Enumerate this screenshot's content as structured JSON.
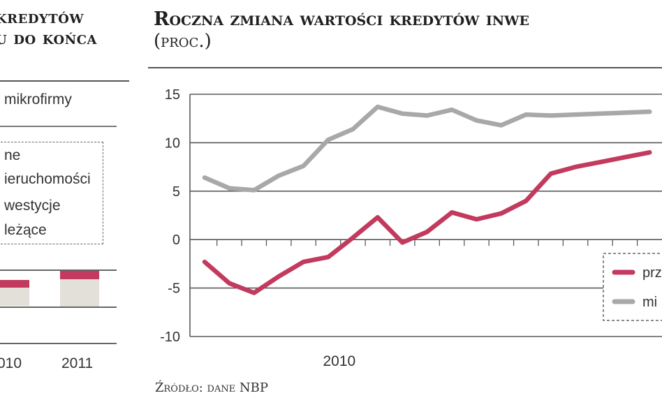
{
  "left_panel": {
    "title_lines": [
      "kredytów",
      "u do końca"
    ],
    "segment_label": "mikrofirmy",
    "legend_items": [
      "ne",
      "ieruchomości",
      "westycje",
      "leżące"
    ],
    "x_labels": [
      "010",
      "2011"
    ],
    "colors": {
      "accent": "#c23a5e",
      "fill": "#e3dfd9",
      "line": "#555555"
    }
  },
  "right_panel": {
    "title": "Roczna zmiana wartości kredytów inwe",
    "subtitle": "(proc.)",
    "source": "Źródło: dane NBP",
    "legend": [
      "prz",
      "mi"
    ]
  },
  "chart_data": {
    "type": "line",
    "y_ticks": [
      "15",
      "10",
      "5",
      "0",
      "-5",
      "-10"
    ],
    "ylim": [
      -10,
      15
    ],
    "x_label": "2010",
    "x_index_range": [
      0,
      18.5
    ],
    "x_label_index": 7,
    "grid": true,
    "legend_position": "bottom-right",
    "series": [
      {
        "name": "prz",
        "color": "#c23a5e",
        "x": [
          0,
          1,
          2,
          3,
          4,
          5,
          6,
          7,
          8,
          9,
          10,
          11,
          12,
          13,
          14,
          15,
          16,
          17,
          18
        ],
        "values": [
          -2.3,
          -4.5,
          -5.5,
          -3.8,
          -2.3,
          -1.8,
          0.2,
          2.3,
          -0.3,
          0.8,
          2.8,
          2.1,
          2.7,
          4,
          6.8,
          7.5,
          8,
          8.5,
          9
        ]
      },
      {
        "name": "mi",
        "color": "#a8a8a8",
        "x": [
          0,
          1,
          2,
          3,
          4,
          5,
          6,
          7,
          8,
          9,
          10,
          11,
          12,
          13,
          14,
          15,
          16,
          17,
          18
        ],
        "values": [
          6.4,
          5.3,
          5.1,
          6.6,
          7.6,
          10.3,
          11.4,
          13.7,
          13,
          12.8,
          13.4,
          12.3,
          11.8,
          12.9,
          12.8,
          12.9,
          13,
          13.1,
          13.2
        ]
      }
    ]
  }
}
